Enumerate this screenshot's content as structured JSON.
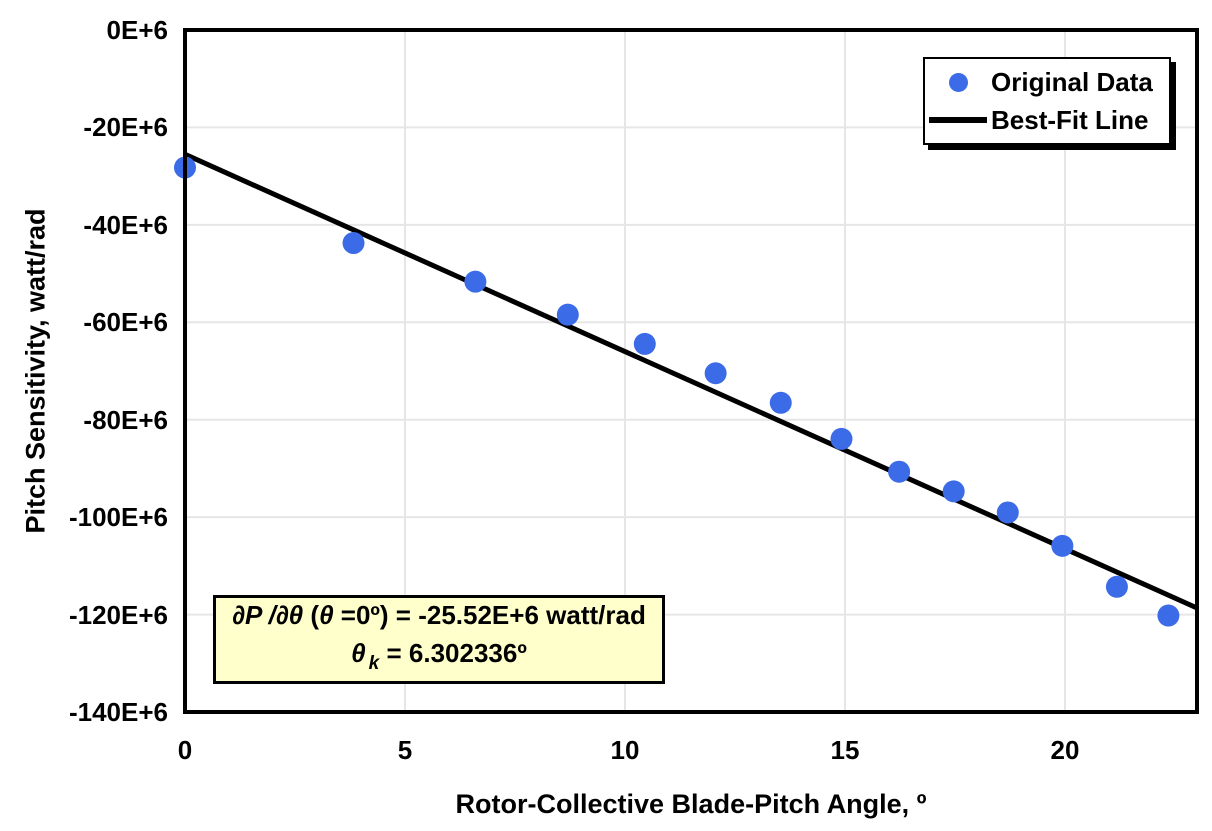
{
  "chart_data": {
    "type": "scatter",
    "title": "",
    "xlabel": "Rotor-Collective Blade-Pitch Angle, º",
    "ylabel": "Pitch Sensitivity, watt/rad",
    "y_unit": "E+6 watt/rad",
    "xlim": [
      0,
      23
    ],
    "ylim_E6": [
      -140,
      0
    ],
    "x_ticks": [
      0,
      5,
      10,
      15,
      20
    ],
    "x_tick_labels": [
      "0",
      "5",
      "10",
      "15",
      "20"
    ],
    "y_ticks_E6": [
      0,
      -20,
      -40,
      -60,
      -80,
      -100,
      -120,
      -140
    ],
    "y_tick_labels": [
      "0E+6",
      "-20E+6",
      "-40E+6",
      "-60E+6",
      "-80E+6",
      "-100E+6",
      "-120E+6",
      "-140E+6"
    ],
    "grid": true,
    "legend_position": "top-right",
    "series": [
      {
        "name": "Original Data",
        "type": "scatter",
        "color": "#3C6BE8",
        "x": [
          0.0,
          3.83,
          6.6,
          8.7,
          10.45,
          12.06,
          13.54,
          14.92,
          16.23,
          17.47,
          18.7,
          19.94,
          21.18,
          22.35
        ],
        "y_E6": [
          -28.24,
          -43.73,
          -51.66,
          -58.44,
          -64.44,
          -70.46,
          -76.53,
          -83.94,
          -90.67,
          -94.71,
          -99.04,
          -105.9,
          -114.3,
          -120.2
        ]
      },
      {
        "name": "Best-Fit Line",
        "type": "line",
        "color": "#000000",
        "x": [
          0,
          23
        ],
        "y_E6": [
          -25.52,
          -118.65
        ]
      }
    ],
    "annotation": {
      "line1_math": "∂P /∂θ",
      "line1_paren": " (",
      "line1_theta": "θ",
      "line1_rest": " =0º) = -25.52E+6 watt/rad",
      "line2_theta": "θ",
      "line2_sub": "k",
      "line2_rest": " = 6.302336º"
    }
  },
  "colors": {
    "marker_blue": "#3C6BE8",
    "fit_line_black": "#000000",
    "gridline_gray": "#E6E6E6",
    "plot_border_black": "#000000",
    "annotation_bg_yellow": "#FFFFCC",
    "background_white": "#FFFFFF"
  }
}
